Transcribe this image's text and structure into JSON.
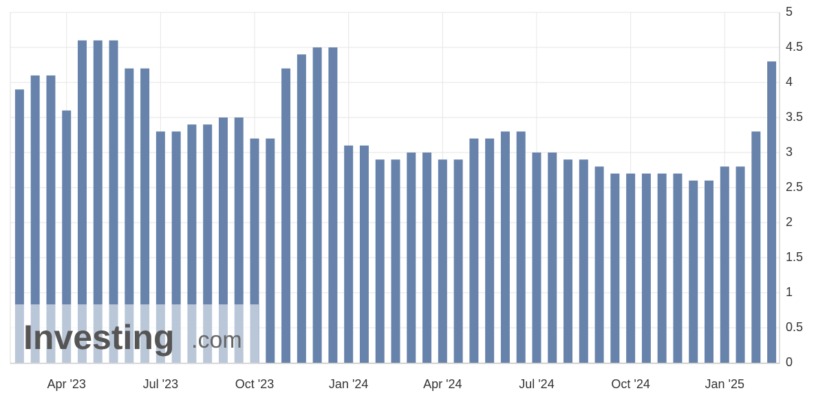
{
  "chart_data": {
    "type": "bar",
    "categories": [
      null,
      null,
      null,
      "Apr '23",
      null,
      null,
      null,
      null,
      null,
      "Jul '23",
      null,
      null,
      null,
      null,
      null,
      "Oct '23",
      null,
      null,
      null,
      null,
      null,
      "Jan '24",
      null,
      null,
      null,
      null,
      null,
      "Apr '24",
      null,
      null,
      null,
      null,
      null,
      "Jul '24",
      null,
      null,
      null,
      null,
      null,
      "Oct '24",
      null,
      null,
      null,
      null,
      null,
      "Jan '25",
      null,
      null,
      null
    ],
    "values": [
      3.9,
      4.1,
      4.1,
      3.6,
      4.6,
      4.6,
      4.6,
      4.2,
      4.2,
      3.3,
      3.3,
      3.4,
      3.4,
      3.5,
      3.5,
      3.2,
      3.2,
      4.2,
      4.4,
      4.5,
      4.5,
      3.1,
      3.1,
      2.9,
      2.9,
      3.0,
      3.0,
      2.9,
      2.9,
      3.2,
      3.2,
      3.3,
      3.3,
      3.0,
      3.0,
      2.9,
      2.9,
      2.8,
      2.7,
      2.7,
      2.7,
      2.7,
      2.7,
      2.6,
      2.6,
      2.8,
      2.8,
      3.3,
      4.3
    ],
    "color": "#6783ab",
    "ylim": [
      0,
      5
    ],
    "yticks": [
      0,
      0.5,
      1,
      1.5,
      2,
      2.5,
      3,
      3.5,
      4,
      4.5,
      5
    ],
    "grid": true,
    "watermark": {
      "brand": "Investing",
      "suffix": ".com"
    }
  }
}
